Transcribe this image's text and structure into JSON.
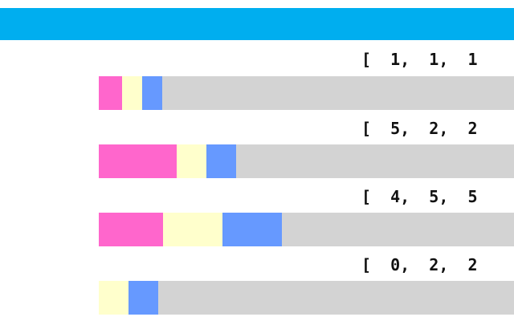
{
  "colors": {
    "header": "#00aeef",
    "track": "#d3d3d3",
    "segment_colors": [
      "#ff66cc",
      "#ffffcc",
      "#6699ff"
    ]
  },
  "rows": [
    {
      "label": "[  1,  1,  1",
      "values": [
        1,
        1,
        1
      ]
    },
    {
      "label": "[  5,  2,  2",
      "values": [
        5,
        2,
        2
      ]
    },
    {
      "label": "[  4,  5,  5",
      "values": [
        4,
        5,
        5
      ]
    },
    {
      "label": "[  0,  2,  2",
      "values": [
        0,
        2,
        2
      ]
    }
  ]
}
